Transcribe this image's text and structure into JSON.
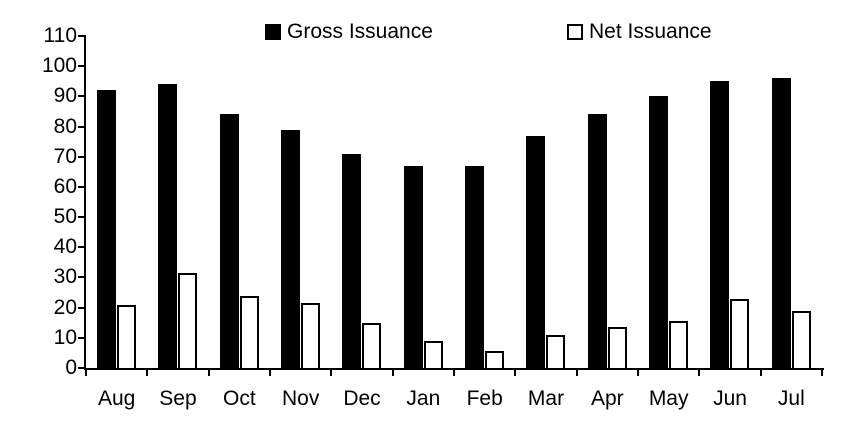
{
  "chart_data": {
    "type": "bar",
    "title": "",
    "xlabel": "",
    "ylabel": "",
    "categories": [
      "Aug",
      "Sep",
      "Oct",
      "Nov",
      "Dec",
      "Jan",
      "Feb",
      "Mar",
      "Apr",
      "May",
      "Jun",
      "Jul"
    ],
    "series": [
      {
        "name": "Gross Issuance",
        "fill": "#000000",
        "stroke": "#000000",
        "values": [
          92,
          94,
          84,
          79,
          71,
          67,
          67,
          77,
          84,
          90,
          95,
          96
        ]
      },
      {
        "name": "Net Issuance",
        "fill": "#ffffff",
        "stroke": "#000000",
        "values": [
          21,
          31.5,
          24,
          21.5,
          15,
          9,
          5.5,
          11,
          13.5,
          15.5,
          23,
          19
        ]
      }
    ],
    "ylim": [
      0,
      110
    ],
    "yticks": [
      0,
      10,
      20,
      30,
      40,
      50,
      60,
      70,
      80,
      90,
      100,
      110
    ],
    "grid": false,
    "legend_position": "top"
  },
  "colors": {
    "background": "#ffffff",
    "axis": "#000000",
    "text": "#000000",
    "gross_bar": "#000000",
    "net_bar_fill": "#ffffff",
    "net_bar_outline": "#000000"
  }
}
